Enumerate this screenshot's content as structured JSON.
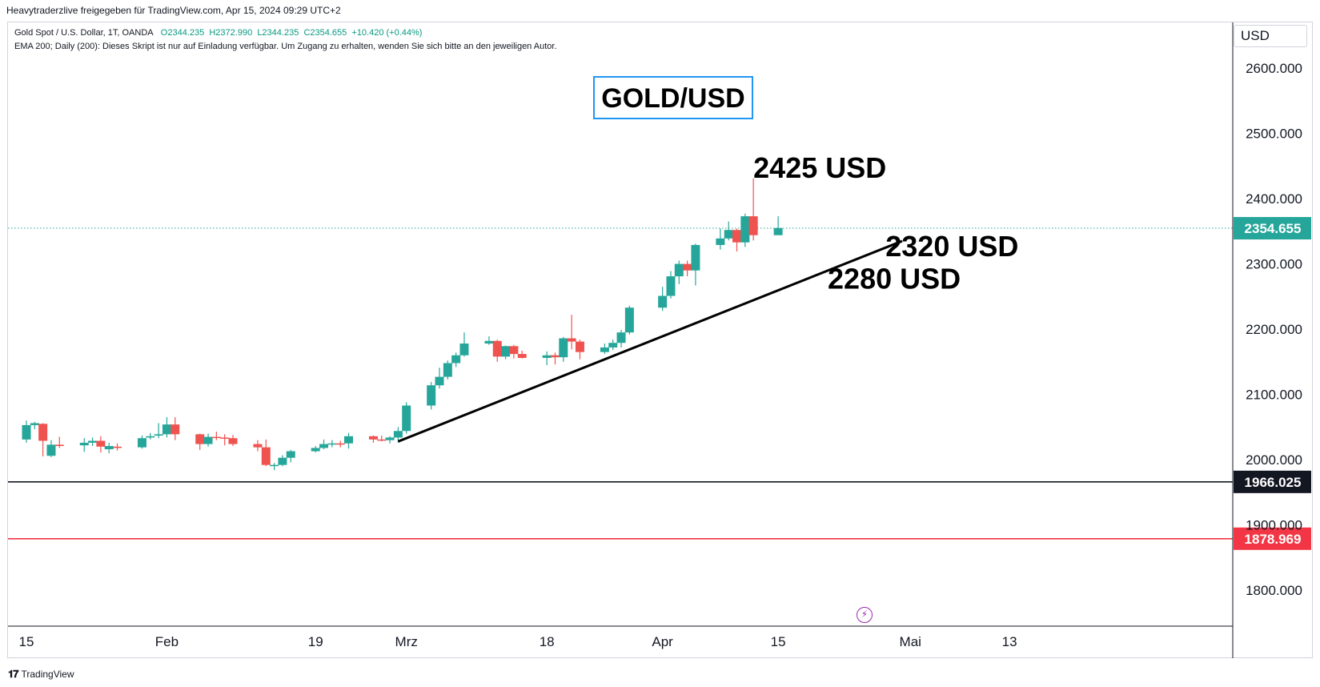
{
  "header": {
    "publish_line": "Heavytraderzlive freigegeben für TradingView.com, Apr 15, 2024 09:29 UTC+2"
  },
  "legend": {
    "symbol": "Gold Spot / U.S. Dollar, 1T, OANDA",
    "open": "O2344.235",
    "high": "H2372.990",
    "low": "L2344.235",
    "close": "C2354.655",
    "change": "+10.420 (+0.44%)",
    "indicator": "EMA 200; Daily (200): Dieses Skript ist nur auf Einladung verfügbar. Um Zugang zu erhalten, wenden Sie sich bitte an den jeweiligen Autor."
  },
  "currency": "USD",
  "footer": {
    "brand": "TradingView",
    "logo": "tradingview-logo-icon"
  },
  "event_icon": "lightning-icon",
  "colors": {
    "up": "#26a69a",
    "down": "#ef5350",
    "current_price": "#26a69a",
    "support_black": "#131722",
    "support_red": "#f23645",
    "title_box_border": "#2196f3"
  },
  "chart_data": {
    "type": "candlestick",
    "title": "GOLD/USD",
    "ylim": [
      1745,
      2670
    ],
    "y_ticks": [
      "1800.000",
      "1900.000",
      "2000.000",
      "2100.000",
      "2200.000",
      "2300.000",
      "2400.000",
      "2500.000",
      "2600.000"
    ],
    "x_ticks": [
      {
        "label": "15",
        "date": "2024-01-15"
      },
      {
        "label": "Feb",
        "date": "2024-02-01"
      },
      {
        "label": "19",
        "date": "2024-02-19"
      },
      {
        "label": "Mrz",
        "date": "2024-03-01"
      },
      {
        "label": "18",
        "date": "2024-03-18"
      },
      {
        "label": "Apr",
        "date": "2024-04-01"
      },
      {
        "label": "15",
        "date": "2024-04-15"
      },
      {
        "label": "Mai",
        "date": "2024-05-01"
      },
      {
        "label": "13",
        "date": "2024-05-13"
      }
    ],
    "candles": [
      {
        "date": "2024-01-15",
        "o": 2031,
        "h": 2060,
        "l": 2026,
        "c": 2053
      },
      {
        "date": "2024-01-16",
        "o": 2053,
        "h": 2058,
        "l": 2047,
        "c": 2056
      },
      {
        "date": "2024-01-17",
        "o": 2055,
        "h": 2056,
        "l": 2005,
        "c": 2029
      },
      {
        "date": "2024-01-18",
        "o": 2006,
        "h": 2030,
        "l": 2004,
        "c": 2023
      },
      {
        "date": "2024-01-19",
        "o": 2023,
        "h": 2035,
        "l": 2018,
        "c": 2021
      },
      {
        "date": "2024-01-22",
        "o": 2022,
        "h": 2033,
        "l": 2012,
        "c": 2026
      },
      {
        "date": "2024-01-23",
        "o": 2026,
        "h": 2034,
        "l": 2021,
        "c": 2029
      },
      {
        "date": "2024-01-24",
        "o": 2029,
        "h": 2036,
        "l": 2011,
        "c": 2020
      },
      {
        "date": "2024-01-25",
        "o": 2016,
        "h": 2026,
        "l": 2010,
        "c": 2021
      },
      {
        "date": "2024-01-26",
        "o": 2020,
        "h": 2025,
        "l": 2014,
        "c": 2018
      },
      {
        "date": "2024-01-29",
        "o": 2019,
        "h": 2037,
        "l": 2017,
        "c": 2033
      },
      {
        "date": "2024-01-30",
        "o": 2034,
        "h": 2041,
        "l": 2031,
        "c": 2036
      },
      {
        "date": "2024-01-31",
        "o": 2037,
        "h": 2056,
        "l": 2033,
        "c": 2039
      },
      {
        "date": "2024-02-01",
        "o": 2039,
        "h": 2065,
        "l": 2034,
        "c": 2054
      },
      {
        "date": "2024-02-02",
        "o": 2054,
        "h": 2065,
        "l": 2030,
        "c": 2039
      },
      {
        "date": "2024-02-05",
        "o": 2039,
        "h": 2040,
        "l": 2015,
        "c": 2024
      },
      {
        "date": "2024-02-06",
        "o": 2024,
        "h": 2040,
        "l": 2020,
        "c": 2035
      },
      {
        "date": "2024-02-07",
        "o": 2035,
        "h": 2043,
        "l": 2030,
        "c": 2034
      },
      {
        "date": "2024-02-08",
        "o": 2034,
        "h": 2039,
        "l": 2022,
        "c": 2033
      },
      {
        "date": "2024-02-09",
        "o": 2033,
        "h": 2038,
        "l": 2021,
        "c": 2024
      },
      {
        "date": "2024-02-12",
        "o": 2024,
        "h": 2030,
        "l": 2013,
        "c": 2019
      },
      {
        "date": "2024-02-13",
        "o": 2019,
        "h": 2031,
        "l": 1990,
        "c": 1992
      },
      {
        "date": "2024-02-14",
        "o": 1992,
        "h": 1995,
        "l": 1984,
        "c": 1992
      },
      {
        "date": "2024-02-15",
        "o": 1992,
        "h": 2007,
        "l": 1990,
        "c": 2003
      },
      {
        "date": "2024-02-16",
        "o": 2003,
        "h": 2015,
        "l": 1996,
        "c": 2013
      },
      {
        "date": "2024-02-19",
        "o": 2013,
        "h": 2021,
        "l": 2011,
        "c": 2018
      },
      {
        "date": "2024-02-20",
        "o": 2018,
        "h": 2031,
        "l": 2016,
        "c": 2024
      },
      {
        "date": "2024-02-21",
        "o": 2024,
        "h": 2030,
        "l": 2019,
        "c": 2025
      },
      {
        "date": "2024-02-22",
        "o": 2025,
        "h": 2029,
        "l": 2019,
        "c": 2024
      },
      {
        "date": "2024-02-23",
        "o": 2025,
        "h": 2041,
        "l": 2017,
        "c": 2036
      },
      {
        "date": "2024-02-26",
        "o": 2036,
        "h": 2037,
        "l": 2026,
        "c": 2031
      },
      {
        "date": "2024-02-27",
        "o": 2031,
        "h": 2037,
        "l": 2028,
        "c": 2030
      },
      {
        "date": "2024-02-28",
        "o": 2030,
        "h": 2036,
        "l": 2025,
        "c": 2034
      },
      {
        "date": "2024-02-29",
        "o": 2034,
        "h": 2050,
        "l": 2026,
        "c": 2044
      },
      {
        "date": "2024-03-01",
        "o": 2044,
        "h": 2088,
        "l": 2040,
        "c": 2083
      },
      {
        "date": "2024-03-04",
        "o": 2083,
        "h": 2119,
        "l": 2077,
        "c": 2114
      },
      {
        "date": "2024-03-05",
        "o": 2114,
        "h": 2141,
        "l": 2109,
        "c": 2127
      },
      {
        "date": "2024-03-06",
        "o": 2127,
        "h": 2152,
        "l": 2123,
        "c": 2148
      },
      {
        "date": "2024-03-07",
        "o": 2148,
        "h": 2164,
        "l": 2142,
        "c": 2160
      },
      {
        "date": "2024-03-08",
        "o": 2160,
        "h": 2195,
        "l": 2158,
        "c": 2178
      },
      {
        "date": "2024-03-11",
        "o": 2178,
        "h": 2189,
        "l": 2176,
        "c": 2182
      },
      {
        "date": "2024-03-12",
        "o": 2182,
        "h": 2184,
        "l": 2150,
        "c": 2158
      },
      {
        "date": "2024-03-13",
        "o": 2158,
        "h": 2175,
        "l": 2154,
        "c": 2174
      },
      {
        "date": "2024-03-14",
        "o": 2174,
        "h": 2176,
        "l": 2155,
        "c": 2162
      },
      {
        "date": "2024-03-15",
        "o": 2162,
        "h": 2167,
        "l": 2155,
        "c": 2156
      },
      {
        "date": "2024-03-18",
        "o": 2156,
        "h": 2166,
        "l": 2145,
        "c": 2160
      },
      {
        "date": "2024-03-19",
        "o": 2160,
        "h": 2164,
        "l": 2146,
        "c": 2157
      },
      {
        "date": "2024-03-20",
        "o": 2157,
        "h": 2188,
        "l": 2150,
        "c": 2186
      },
      {
        "date": "2024-03-21",
        "o": 2186,
        "h": 2222,
        "l": 2169,
        "c": 2181
      },
      {
        "date": "2024-03-22",
        "o": 2181,
        "h": 2184,
        "l": 2154,
        "c": 2165
      },
      {
        "date": "2024-03-25",
        "o": 2165,
        "h": 2178,
        "l": 2162,
        "c": 2172
      },
      {
        "date": "2024-03-26",
        "o": 2172,
        "h": 2184,
        "l": 2168,
        "c": 2179
      },
      {
        "date": "2024-03-27",
        "o": 2179,
        "h": 2199,
        "l": 2172,
        "c": 2195
      },
      {
        "date": "2024-03-28",
        "o": 2195,
        "h": 2236,
        "l": 2192,
        "c": 2233
      },
      {
        "date": "2024-04-01",
        "o": 2233,
        "h": 2265,
        "l": 2228,
        "c": 2251
      },
      {
        "date": "2024-04-02",
        "o": 2251,
        "h": 2289,
        "l": 2247,
        "c": 2281
      },
      {
        "date": "2024-04-03",
        "o": 2281,
        "h": 2305,
        "l": 2269,
        "c": 2300
      },
      {
        "date": "2024-04-04",
        "o": 2300,
        "h": 2305,
        "l": 2281,
        "c": 2290
      },
      {
        "date": "2024-04-05",
        "o": 2290,
        "h": 2331,
        "l": 2267,
        "c": 2329
      },
      {
        "date": "2024-04-08",
        "o": 2329,
        "h": 2354,
        "l": 2322,
        "c": 2339
      },
      {
        "date": "2024-04-09",
        "o": 2339,
        "h": 2365,
        "l": 2336,
        "c": 2352
      },
      {
        "date": "2024-04-10",
        "o": 2352,
        "h": 2354,
        "l": 2319,
        "c": 2333
      },
      {
        "date": "2024-04-11",
        "o": 2333,
        "h": 2377,
        "l": 2326,
        "c": 2373
      },
      {
        "date": "2024-04-12",
        "o": 2373,
        "h": 2431,
        "l": 2336,
        "c": 2344
      },
      {
        "date": "2024-04-15",
        "o": 2344,
        "h": 2373,
        "l": 2344,
        "c": 2355
      }
    ],
    "horizontal_lines": [
      {
        "price": 2354.655,
        "label": "2354.655",
        "style": "dotted",
        "color": "#26a69a"
      },
      {
        "price": 1966.025,
        "label": "1966.025",
        "style": "solid",
        "color": "#131722"
      },
      {
        "price": 1878.969,
        "label": "1878.969",
        "style": "solid",
        "color": "#f23645"
      }
    ],
    "trendline": {
      "start": {
        "date": "2024-02-29",
        "price": 2028
      },
      "end": {
        "date": "2024-04-30",
        "price": 2335
      }
    },
    "annotations": [
      {
        "text": "2425 USD",
        "anchor": {
          "date": "2024-04-12",
          "price": 2432
        }
      },
      {
        "text": "2320 USD",
        "anchor": {
          "date": "2024-04-28",
          "price": 2312
        }
      },
      {
        "text": "2280 USD",
        "anchor": {
          "date": "2024-04-21",
          "price": 2262
        }
      }
    ]
  }
}
